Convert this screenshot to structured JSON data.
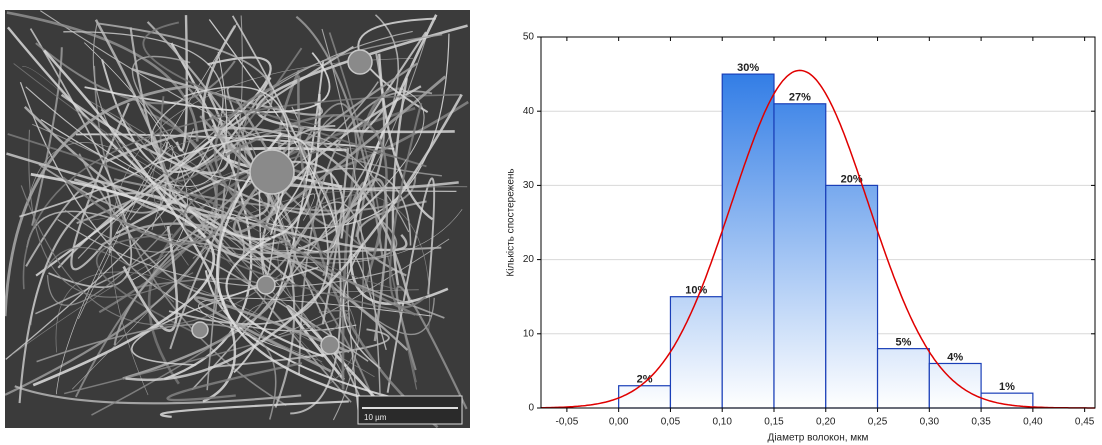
{
  "image": {
    "scale_bar": "10 µm"
  },
  "chart_data": {
    "type": "histogram",
    "xlabel": "Діаметр волокон, мкм",
    "ylabel": "Кількість спостережень",
    "bins": [
      0,
      0.05,
      0.1,
      0.15,
      0.2,
      0.25,
      0.3,
      0.35,
      0.4
    ],
    "values": [
      3,
      15,
      45,
      41,
      30,
      8,
      6,
      2
    ],
    "value_labels": [
      "2%",
      "10%",
      "30%",
      "27%",
      "20%",
      "5%",
      "4%",
      "1%"
    ],
    "color": "#1c6fe3",
    "curve": {
      "mean": 0.175,
      "sd": 0.066,
      "peak": 45.5,
      "color": "#e00000"
    },
    "xlim": [
      -0.075,
      0.46
    ],
    "ylim": [
      0,
      50
    ],
    "xticks": [
      {
        "value": -0.05,
        "label": "-0,05"
      },
      {
        "value": 0,
        "label": "0,00"
      },
      {
        "value": 0.05,
        "label": "0,05"
      },
      {
        "value": 0.1,
        "label": "0,10"
      },
      {
        "value": 0.15,
        "label": "0,15"
      },
      {
        "value": 0.2,
        "label": "0,20"
      },
      {
        "value": 0.25,
        "label": "0,25"
      },
      {
        "value": 0.3,
        "label": "0,30"
      },
      {
        "value": 0.35,
        "label": "0,35"
      },
      {
        "value": 0.4,
        "label": "0,40"
      },
      {
        "value": 0.45,
        "label": "0,45"
      }
    ],
    "yticks": [
      0,
      10,
      20,
      30,
      40,
      50
    ],
    "grid": true
  }
}
